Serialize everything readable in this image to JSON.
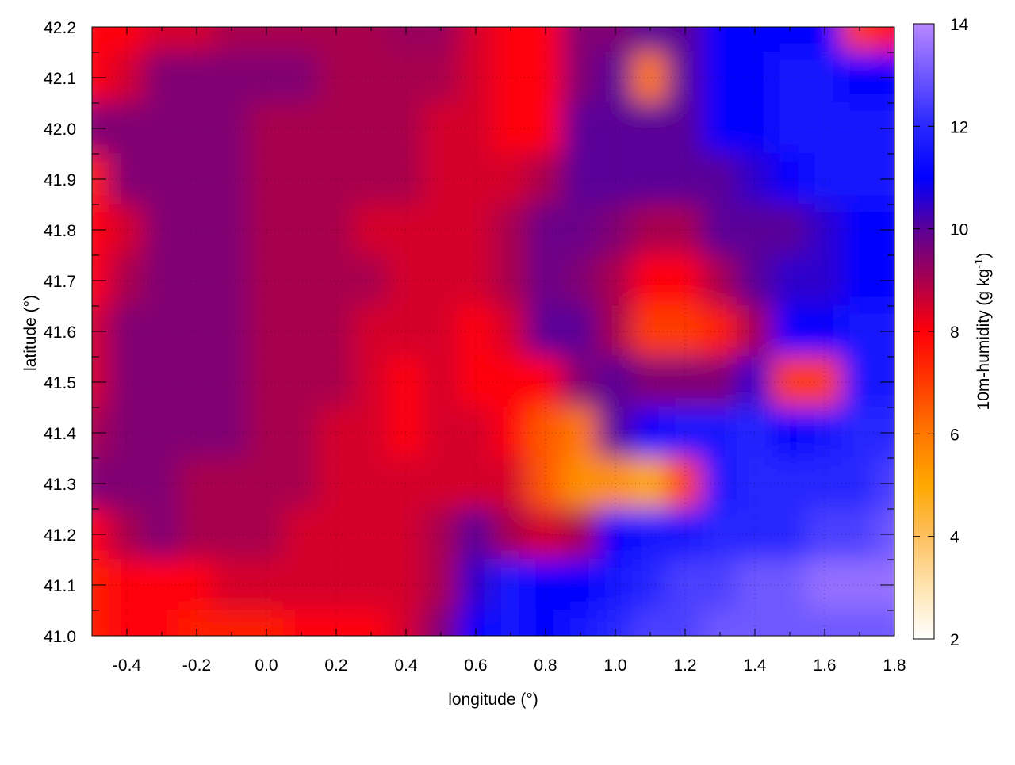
{
  "chart_data": {
    "type": "heatmap",
    "xlabel": "longitude (°)",
    "ylabel": "latitude (°)",
    "colorbar_label": "10m-humidity (g kg",
    "colorbar_label_sup": "-1",
    "colorbar_label_end": ")",
    "xlim": [
      -0.5,
      1.8
    ],
    "ylim": [
      41.0,
      42.2
    ],
    "zlim": [
      2,
      14
    ],
    "grid": true,
    "xticks": [
      "-0.4",
      "-0.2",
      "0.0",
      "0.2",
      "0.4",
      "0.6",
      "0.8",
      "1.0",
      "1.2",
      "1.4",
      "1.6",
      "1.8"
    ],
    "yticks": [
      "41.0",
      "41.1",
      "41.2",
      "41.3",
      "41.4",
      "41.5",
      "41.6",
      "41.7",
      "41.8",
      "41.9",
      "42.0",
      "42.1",
      "42.2"
    ],
    "zticks": [
      "2",
      "4",
      "6",
      "8",
      "10",
      "12",
      "14"
    ],
    "palette": [
      {
        "z": 2,
        "color": "#ffffff"
      },
      {
        "z": 3,
        "color": "#ffe4b0"
      },
      {
        "z": 4,
        "color": "#fdc060"
      },
      {
        "z": 5,
        "color": "#ffa800"
      },
      {
        "z": 6,
        "color": "#ff7800"
      },
      {
        "z": 7,
        "color": "#ff3a00"
      },
      {
        "z": 8,
        "color": "#ff0008"
      },
      {
        "z": 9,
        "color": "#a8004e"
      },
      {
        "z": 10,
        "color": "#5a0098"
      },
      {
        "z": 11,
        "color": "#0000ff"
      },
      {
        "z": 12,
        "color": "#2828ff"
      },
      {
        "z": 13,
        "color": "#7058ff"
      },
      {
        "z": 14,
        "color": "#b888ff"
      }
    ],
    "x": [
      -0.5,
      -0.4,
      -0.3,
      -0.2,
      -0.1,
      0.0,
      0.1,
      0.2,
      0.3,
      0.4,
      0.5,
      0.6,
      0.7,
      0.8,
      0.9,
      1.0,
      1.1,
      1.2,
      1.3,
      1.4,
      1.5,
      1.6,
      1.7,
      1.8
    ],
    "y": [
      42.2,
      42.1,
      42.0,
      41.9,
      41.8,
      41.7,
      41.6,
      41.5,
      41.4,
      41.3,
      41.2,
      41.1,
      41.0
    ],
    "z": [
      [
        8,
        8,
        8.5,
        8.5,
        9,
        9,
        9,
        9,
        9,
        9.2,
        9.2,
        8.5,
        8,
        8,
        9.5,
        9.5,
        10,
        10,
        11,
        11,
        11,
        11,
        7,
        8
      ],
      [
        8,
        8.5,
        9.5,
        9.5,
        9.5,
        9.5,
        9.5,
        9,
        9,
        9,
        9,
        8.5,
        8,
        8,
        9.5,
        10,
        6,
        10,
        11,
        11,
        11.5,
        11.5,
        11,
        11
      ],
      [
        9.5,
        9.5,
        9.5,
        9.5,
        9.5,
        9,
        9,
        9,
        9,
        9,
        8.5,
        8.5,
        8,
        8,
        10,
        10,
        10,
        10,
        11,
        11,
        11.5,
        11.5,
        11.5,
        11.5
      ],
      [
        7.5,
        9.5,
        9.5,
        9.5,
        9.5,
        9,
        9,
        9,
        9,
        9,
        8.5,
        8.5,
        8.5,
        9,
        10,
        10,
        10,
        10,
        10,
        10.5,
        11,
        11.5,
        11.5,
        11.5
      ],
      [
        8,
        8.5,
        9.5,
        9.5,
        9.5,
        9,
        9,
        9,
        8.5,
        8.5,
        8.5,
        8.5,
        9,
        9.8,
        9.8,
        9.5,
        9,
        9,
        10,
        10,
        10,
        10.5,
        11,
        11
      ],
      [
        8,
        9,
        9.5,
        9.5,
        9.5,
        9,
        9,
        9,
        9,
        8.5,
        8.5,
        8.5,
        9,
        9.8,
        9.5,
        9,
        8,
        8,
        9,
        10,
        10.5,
        10.5,
        11,
        11
      ],
      [
        8.5,
        9.5,
        9.5,
        9.5,
        9.5,
        9,
        9,
        9,
        8.5,
        8.5,
        8.5,
        8,
        8.5,
        10,
        10,
        9,
        7,
        7,
        7.5,
        9,
        11,
        11,
        11.5,
        11.5
      ],
      [
        8.5,
        9.5,
        9.5,
        9.5,
        9.5,
        9,
        9,
        9,
        8.5,
        8,
        8.5,
        8,
        8,
        8,
        9.5,
        10,
        9.5,
        9.5,
        9.5,
        10.5,
        7,
        7,
        11.5,
        11.5
      ],
      [
        9,
        9.5,
        9.5,
        9.5,
        9.5,
        9,
        9,
        8.5,
        8.5,
        8,
        8.5,
        8.5,
        8,
        6.5,
        6,
        10,
        11,
        11.5,
        11.5,
        12,
        11,
        11.5,
        12,
        12
      ],
      [
        9.5,
        9.5,
        9.5,
        9,
        9,
        9,
        9,
        8.5,
        8.5,
        8.5,
        8.5,
        8.5,
        8.5,
        6.5,
        5.5,
        5.5,
        5,
        7,
        11.5,
        12,
        12,
        12,
        12,
        12.5
      ],
      [
        8,
        9,
        9.5,
        9,
        9,
        9,
        8.5,
        8.5,
        8.5,
        8.5,
        9,
        10,
        9,
        8.5,
        9,
        11,
        11.5,
        11.5,
        12,
        12,
        12,
        12.5,
        12.5,
        13
      ],
      [
        7.5,
        8,
        8,
        8,
        8.5,
        8.5,
        8.5,
        8.5,
        8.5,
        8.5,
        9,
        10.5,
        11.5,
        11,
        11,
        11.5,
        12,
        12.5,
        12.5,
        13,
        13,
        13.5,
        13.5,
        13.5
      ],
      [
        7.5,
        8,
        8,
        7.5,
        7.5,
        7.5,
        8,
        8,
        8,
        8.5,
        9.5,
        11,
        11.5,
        11,
        11.5,
        12,
        12.5,
        12.5,
        13,
        13,
        13,
        13,
        13,
        13
      ]
    ]
  }
}
